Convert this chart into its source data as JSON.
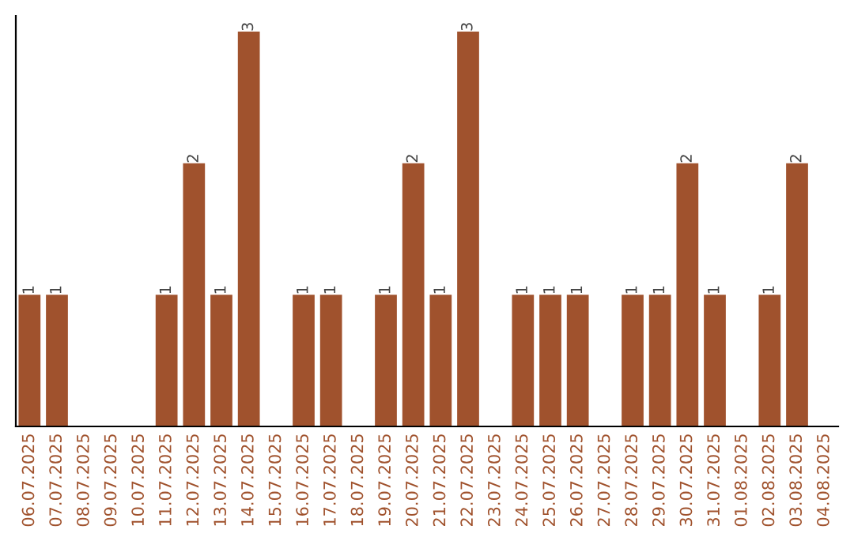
{
  "chart_data": {
    "type": "bar",
    "categories": [
      "06.07.2025",
      "07.07.2025",
      "08.07.2025",
      "09.07.2025",
      "10.07.2025",
      "11.07.2025",
      "12.07.2025",
      "13.07.2025",
      "14.07.2025",
      "15.07.2025",
      "16.07.2025",
      "17.07.2025",
      "18.07.2025",
      "19.07.2025",
      "20.07.2025",
      "21.07.2025",
      "22.07.2025",
      "23.07.2025",
      "24.07.2025",
      "25.07.2025",
      "26.07.2025",
      "27.07.2025",
      "28.07.2025",
      "29.07.2025",
      "30.07.2025",
      "31.07.2025",
      "01.08.2025",
      "02.08.2025",
      "03.08.2025",
      "04.08.2025"
    ],
    "values": [
      1,
      1,
      0,
      0,
      0,
      1,
      2,
      1,
      3,
      0,
      1,
      1,
      0,
      1,
      2,
      1,
      3,
      0,
      1,
      1,
      1,
      0,
      1,
      1,
      2,
      1,
      0,
      1,
      2,
      0
    ],
    "value_labels": [
      "1",
      "1",
      null,
      null,
      null,
      "1",
      "2",
      "1",
      "3",
      null,
      "1",
      "1",
      null,
      "1",
      "2",
      "1",
      "3",
      null,
      "1",
      "1",
      "1",
      null,
      "1",
      "1",
      "2",
      "1",
      null,
      "1",
      "2",
      null
    ],
    "color": "#a0522d",
    "tick_labels": "x",
    "grid": false,
    "legend": false
  }
}
